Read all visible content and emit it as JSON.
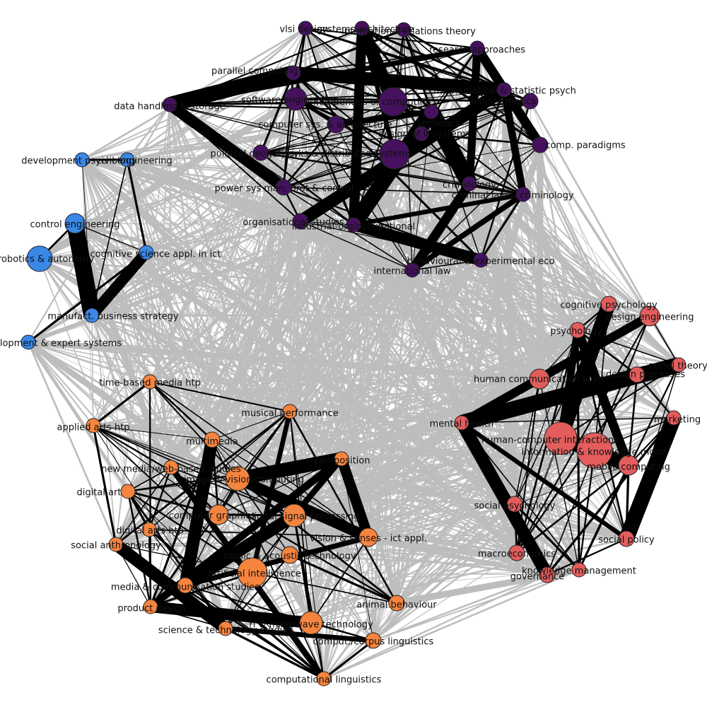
{
  "colors": {
    "purple": "#45115e",
    "blue": "#3a87e6",
    "orange": "#f5843f",
    "red": "#e35d5d",
    "inter_cluster_edge": "#bdbdbd",
    "intra_cluster_edge": "#000000",
    "background": "#ffffff"
  },
  "clusters": [
    {
      "id": "purple",
      "color_key": "purple",
      "nodes": [
        {
          "label": "vlsi design"
        },
        {
          "label": "systems architecture"
        },
        {
          "label": "international relations theory"
        },
        {
          "label": "research approaches"
        },
        {
          "label": "parallel computing"
        },
        {
          "label": "data handling & storage"
        },
        {
          "label": "software engineering"
        },
        {
          "label": "fundamentals of computing"
        },
        {
          "label": "mathematical & statistic psych"
        },
        {
          "label": "bioinformatics"
        },
        {
          "label": "computer sys. & architecture"
        },
        {
          "label": "semiotics"
        },
        {
          "label": "design of it systems"
        },
        {
          "label": "comp. paradigms"
        },
        {
          "label": "political geography"
        },
        {
          "label": "networks & distributed systems"
        },
        {
          "label": "criminology"
        },
        {
          "label": "criminal law & criminology"
        },
        {
          "label": "power sys man, prot & control"
        },
        {
          "label": "organisational studies"
        },
        {
          "label": "industrial-org/occupational"
        },
        {
          "label": "behavioural & experimental eco"
        },
        {
          "label": "international law"
        }
      ]
    },
    {
      "id": "blue",
      "color_key": "blue",
      "nodes": [
        {
          "label": "development psychology"
        },
        {
          "label": "civil engineering"
        },
        {
          "label": "control engineering"
        },
        {
          "label": "robotics & autonomy"
        },
        {
          "label": "cognitive science appl. in ict"
        },
        {
          "label": "manufact. business strategy"
        },
        {
          "label": "development & expert systems"
        }
      ]
    },
    {
      "id": "orange",
      "color_key": "orange",
      "nodes": [
        {
          "label": "time-based media htp"
        },
        {
          "label": "musical performance"
        },
        {
          "label": "applied arts htp"
        },
        {
          "label": "multimedia"
        },
        {
          "label": "composition"
        },
        {
          "label": "new media/web-based studies"
        },
        {
          "label": "image & vision computing"
        },
        {
          "label": "digital art"
        },
        {
          "label": "computer graphics"
        },
        {
          "label": "digital signal processing"
        },
        {
          "label": "digital arts htp"
        },
        {
          "label": "vision & senses - ict appl."
        },
        {
          "label": "social anthropology"
        },
        {
          "label": "music & acoustic technology"
        },
        {
          "label": "artificial intelligence"
        },
        {
          "label": "media & communication studies"
        },
        {
          "label": "animal behaviour"
        },
        {
          "label": "product design"
        },
        {
          "label": "rf & microwave technology"
        },
        {
          "label": "science & technology studies"
        },
        {
          "label": "comput./corpus linguistics"
        },
        {
          "label": "computational linguistics"
        }
      ]
    },
    {
      "id": "red",
      "color_key": "red",
      "nodes": [
        {
          "label": "cognitive psychology"
        },
        {
          "label": "design engineering"
        },
        {
          "label": "psychology"
        },
        {
          "label": "social theory"
        },
        {
          "label": "human communication in ict"
        },
        {
          "label": "design processes"
        },
        {
          "label": "marketing"
        },
        {
          "label": "mental health"
        },
        {
          "label": "human-computer interactions"
        },
        {
          "label": "information & knowledge mgmt"
        },
        {
          "label": "mobile computing"
        },
        {
          "label": "social psychology"
        },
        {
          "label": "social policy"
        },
        {
          "label": "macroeconomics"
        },
        {
          "label": "knowledge management"
        },
        {
          "label": "governance"
        }
      ]
    }
  ]
}
